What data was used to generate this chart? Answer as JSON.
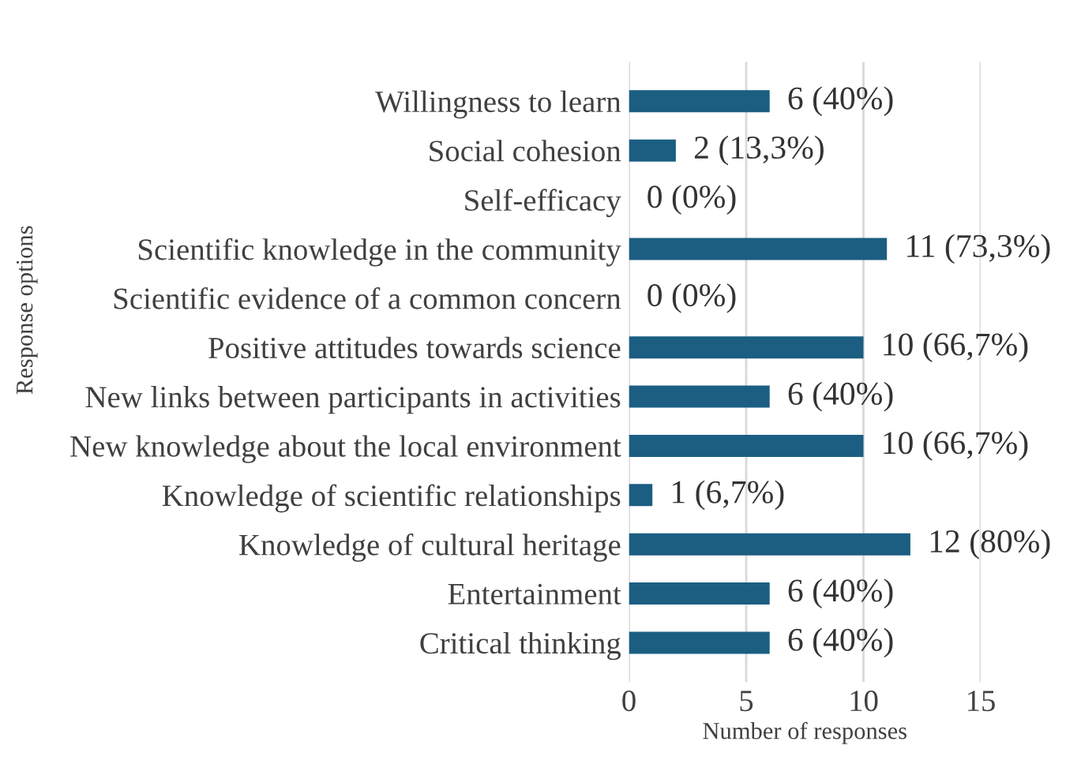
{
  "chart_data": {
    "type": "bar",
    "orientation": "horizontal",
    "xlabel": "Number of responses",
    "ylabel": "Response options",
    "categories": [
      "Willingness to learn",
      "Social cohesion",
      "Self-efficacy",
      "Scientific knowledge in the community",
      "Scientific evidence of a common concern",
      "Positive attitudes towards science",
      "New links between participants in activities",
      "New knowledge about the local environment",
      "Knowledge of scientific relationships",
      "Knowledge of cultural heritage",
      "Entertainment",
      "Critical thinking"
    ],
    "values": [
      6,
      2,
      0,
      11,
      0,
      10,
      6,
      10,
      1,
      12,
      6,
      6
    ],
    "value_labels": [
      "6 (40%)",
      "2 (13,3%)",
      "0 (0%)",
      "11 (73,3%)",
      "0 (0%)",
      "10 (66,7%)",
      "6 (40%)",
      "10 (66,7%)",
      "1 (6,7%)",
      "12 (80%)",
      "6 (40%)",
      "6 (40%)"
    ],
    "color": "#1b5e82",
    "xlim": [
      0,
      15
    ],
    "xticks": [
      0,
      5,
      10,
      15
    ],
    "grid": "x"
  }
}
